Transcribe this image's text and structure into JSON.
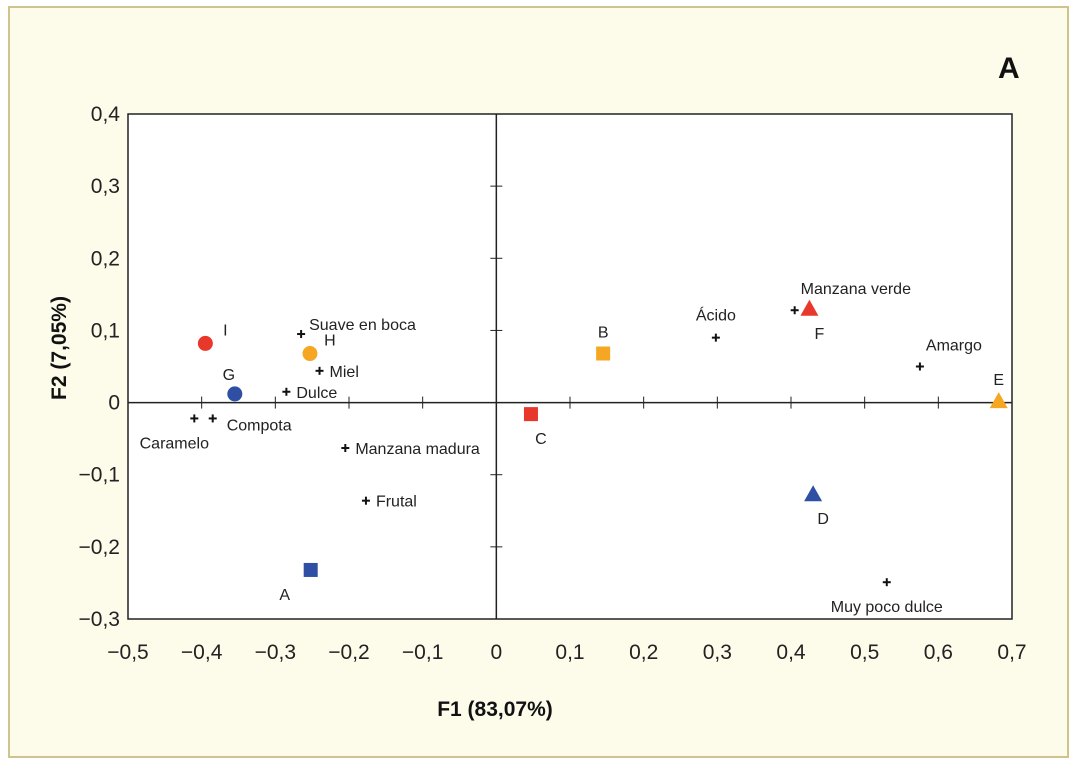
{
  "panel_letter": "A",
  "chart_data": {
    "type": "scatter",
    "xlabel": "F1 (83,07%)",
    "ylabel": "F2 (7,05%)",
    "xlim": [
      -0.5,
      0.7
    ],
    "ylim": [
      -0.3,
      0.4
    ],
    "x_ticks": [
      -0.5,
      -0.4,
      -0.3,
      -0.2,
      -0.1,
      0,
      0.1,
      0.2,
      0.3,
      0.4,
      0.5,
      0.6,
      0.7
    ],
    "x_tick_labels": [
      "−0,5",
      "−0,4",
      "−0,3",
      "−0,2",
      "−0,1",
      "0",
      "0,1",
      "0,2",
      "0,3",
      "0,4",
      "0,5",
      "0,6",
      "0,7"
    ],
    "y_ticks": [
      0.4,
      0.3,
      0.2,
      0.1,
      0,
      -0.1,
      -0.2,
      -0.3
    ],
    "y_tick_labels": [
      "0,4",
      "0,3",
      "0,2",
      "0,1",
      "0",
      "−0,1",
      "−0,2",
      "−0,3"
    ],
    "grid": false,
    "attributes": [
      {
        "label": "Suave en boca",
        "x": -0.265,
        "y": 0.095,
        "label_pos": "right-up"
      },
      {
        "label": "Miel",
        "x": -0.24,
        "y": 0.044,
        "label_pos": "right"
      },
      {
        "label": "Dulce",
        "x": -0.285,
        "y": 0.015,
        "label_pos": "right"
      },
      {
        "label": "Compota",
        "x": -0.385,
        "y": -0.022,
        "label_pos": "right-down"
      },
      {
        "label": "Caramelo",
        "x": -0.41,
        "y": -0.022,
        "label_pos": "below-left"
      },
      {
        "label": "Manzana madura",
        "x": -0.205,
        "y": -0.063,
        "label_pos": "right"
      },
      {
        "label": "Frutal",
        "x": -0.177,
        "y": -0.136,
        "label_pos": "right"
      },
      {
        "label": "Ácido",
        "x": 0.298,
        "y": 0.09,
        "label_pos": "above"
      },
      {
        "label": "Manzana verde",
        "x": 0.405,
        "y": 0.128,
        "label_pos": "above-right"
      },
      {
        "label": "Amargo",
        "x": 0.575,
        "y": 0.05,
        "label_pos": "above-right"
      },
      {
        "label": "Muy poco dulce",
        "x": 0.53,
        "y": -0.249,
        "label_pos": "below"
      }
    ],
    "samples": [
      {
        "label": "A",
        "x": -0.252,
        "y": -0.232,
        "shape": "square",
        "color": "#2e4fa3",
        "label_pos": "below-left"
      },
      {
        "label": "B",
        "x": 0.145,
        "y": 0.068,
        "shape": "square",
        "color": "#f5a623",
        "label_pos": "above"
      },
      {
        "label": "C",
        "x": 0.047,
        "y": -0.016,
        "shape": "square",
        "color": "#e8382b",
        "label_pos": "below-right"
      },
      {
        "label": "D",
        "x": 0.43,
        "y": -0.127,
        "shape": "triangle",
        "color": "#2e4fa3",
        "label_pos": "below"
      },
      {
        "label": "E",
        "x": 0.682,
        "y": 0.002,
        "shape": "triangle",
        "color": "#f5a623",
        "label_pos": "above"
      },
      {
        "label": "F",
        "x": 0.425,
        "y": 0.13,
        "shape": "triangle",
        "color": "#e8382b",
        "label_pos": "below-right"
      },
      {
        "label": "G",
        "x": -0.355,
        "y": 0.012,
        "shape": "circle",
        "color": "#2e4fa3",
        "label_pos": "above-left"
      },
      {
        "label": "H",
        "x": -0.253,
        "y": 0.068,
        "shape": "circle",
        "color": "#f5a623",
        "label_pos": "above-right"
      },
      {
        "label": "I",
        "x": -0.395,
        "y": 0.082,
        "shape": "circle",
        "color": "#e8382b",
        "label_pos": "above-right"
      }
    ]
  }
}
